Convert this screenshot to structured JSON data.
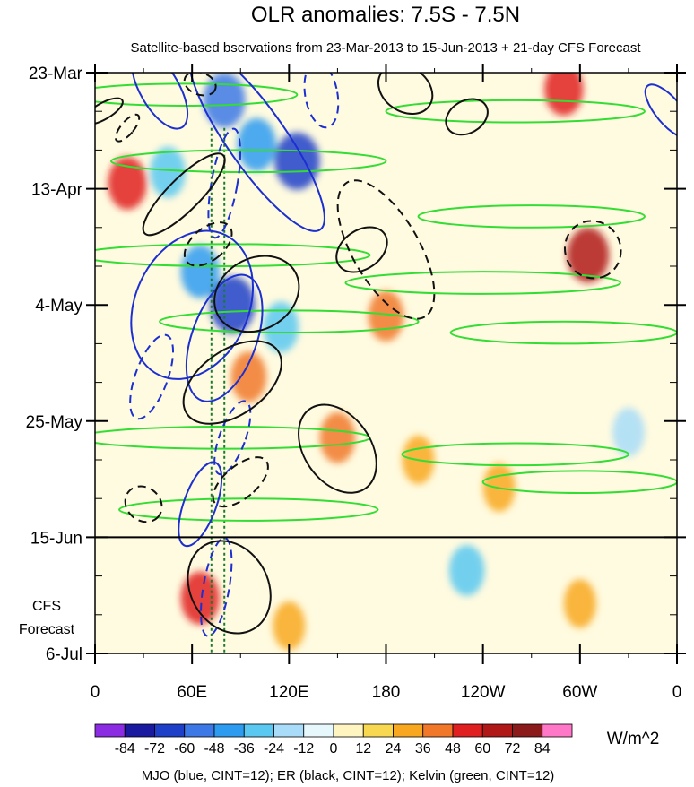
{
  "chart_data": {
    "type": "heatmap",
    "title": "OLR anomalies: 7.5S - 7.5N",
    "subtitle": "Satellite-based bservations from 23-Mar-2013 to 15-Jun-2013 + 21-day CFS Forecast",
    "x_ticks": [
      {
        "lon": 0,
        "label": "0"
      },
      {
        "lon": 60,
        "label": "60E"
      },
      {
        "lon": 120,
        "label": "120E"
      },
      {
        "lon": 180,
        "label": "180"
      },
      {
        "lon": 240,
        "label": "120W"
      },
      {
        "lon": 300,
        "label": "60W"
      },
      {
        "lon": 360,
        "label": "0"
      }
    ],
    "xlim": [
      0,
      360
    ],
    "y_ticks": [
      {
        "day": 0,
        "label": "23-Mar"
      },
      {
        "day": 21,
        "label": "13-Apr"
      },
      {
        "day": 42,
        "label": "4-May"
      },
      {
        "day": 63,
        "label": "25-May"
      },
      {
        "day": 84,
        "label": "15-Jun"
      },
      {
        "day": 105,
        "label": "6-Jul"
      }
    ],
    "ylim_days": [
      0,
      105
    ],
    "forecast_start_day": 84,
    "forecast_label": [
      "CFS",
      "Forecast"
    ],
    "colorbar": {
      "levels": [
        -84,
        -72,
        -60,
        -48,
        -36,
        -24,
        -12,
        0,
        12,
        24,
        36,
        48,
        60,
        72,
        84
      ],
      "level_labels": [
        "-84",
        "-72",
        "-60",
        "-48",
        "-36",
        "-24",
        "-12",
        "0",
        "12",
        "24",
        "36",
        "48",
        "60",
        "72",
        "84"
      ],
      "colors": [
        "#8b2be2",
        "#1a1aa0",
        "#1e3fc8",
        "#3c78e6",
        "#2d9bf0",
        "#5ac8f0",
        "#a8dcf8",
        "#e6f8fc",
        "#fff5c0",
        "#f8d850",
        "#f8a820",
        "#f07828",
        "#e02020",
        "#b01818",
        "#8b1a1a",
        "#ff78c8"
      ],
      "units": "W/m^2"
    },
    "footnote": "MJO (blue, CINT=12); ER (black, CINT=12); Kelvin (green, CINT=12)",
    "reference_lines_lon": [
      72,
      80
    ],
    "anomaly_features": [
      {
        "lon": 80,
        "day": 5,
        "value": -60
      },
      {
        "lon": 100,
        "day": 13,
        "value": -48
      },
      {
        "lon": 125,
        "day": 16,
        "value": -72
      },
      {
        "lon": 45,
        "day": 18,
        "value": -36
      },
      {
        "lon": 65,
        "day": 36,
        "value": -48
      },
      {
        "lon": 85,
        "day": 42,
        "value": -72
      },
      {
        "lon": 115,
        "day": 46,
        "value": -36
      },
      {
        "lon": 95,
        "day": 55,
        "value": 36
      },
      {
        "lon": 180,
        "day": 44,
        "value": 36
      },
      {
        "lon": 150,
        "day": 66,
        "value": 36
      },
      {
        "lon": 65,
        "day": 95,
        "value": 48
      },
      {
        "lon": 305,
        "day": 33,
        "value": 60
      },
      {
        "lon": 290,
        "day": 3,
        "value": 48
      },
      {
        "lon": 20,
        "day": 20,
        "value": 48
      },
      {
        "lon": 230,
        "day": 90,
        "value": -36
      },
      {
        "lon": 200,
        "day": 70,
        "value": 24
      },
      {
        "lon": 250,
        "day": 75,
        "value": 24
      },
      {
        "lon": 330,
        "day": 65,
        "value": -24
      },
      {
        "lon": 120,
        "day": 100,
        "value": 24
      },
      {
        "lon": 300,
        "day": 96,
        "value": 24
      }
    ],
    "mjo_contours": [
      {
        "lon": 40,
        "day": 3,
        "dlon": 12,
        "dday": 8,
        "angle": -30,
        "dash": false
      },
      {
        "lon": 100,
        "day": 12,
        "dlon": 18,
        "dday": 20,
        "angle": -35,
        "dash": false
      },
      {
        "lon": 60,
        "day": 42,
        "dlon": 35,
        "dday": 14,
        "angle": 25,
        "dash": false
      },
      {
        "lon": 80,
        "day": 48,
        "dlon": 20,
        "dday": 12,
        "angle": 20,
        "dash": false
      },
      {
        "lon": 65,
        "day": 78,
        "dlon": 10,
        "dday": 8,
        "angle": 20,
        "dash": false
      },
      {
        "lon": 355,
        "day": 7,
        "dlon": 8,
        "dday": 6,
        "angle": -40,
        "dash": false
      },
      {
        "lon": 80,
        "day": 20,
        "dlon": 8,
        "dday": 10,
        "angle": 10,
        "dash": true
      },
      {
        "lon": 35,
        "day": 55,
        "dlon": 10,
        "dday": 8,
        "angle": 20,
        "dash": true
      },
      {
        "lon": 85,
        "day": 66,
        "dlon": 8,
        "dday": 7,
        "angle": 20,
        "dash": true
      },
      {
        "lon": 75,
        "day": 93,
        "dlon": 8,
        "dday": 9,
        "angle": 10,
        "dash": true
      },
      {
        "lon": 140,
        "day": 4,
        "dlon": 10,
        "dday": 6,
        "angle": -10,
        "dash": true
      }
    ],
    "er_contours": [
      {
        "lon": 55,
        "day": 22,
        "dlon": 10,
        "dday": 10,
        "angle": 45,
        "dash": false
      },
      {
        "lon": 85,
        "day": 56,
        "dlon": 20,
        "dday": 10,
        "angle": 55,
        "dash": false
      },
      {
        "lon": 100,
        "day": 40,
        "dlon": 22,
        "dday": 8,
        "angle": 60,
        "dash": false
      },
      {
        "lon": 165,
        "day": 32,
        "dlon": 12,
        "dday": 5,
        "angle": 55,
        "dash": false
      },
      {
        "lon": 150,
        "day": 68,
        "dlon": 30,
        "dday": 6,
        "angle": 55,
        "dash": false
      },
      {
        "lon": 83,
        "day": 93,
        "dlon": 30,
        "dday": 7,
        "angle": 60,
        "dash": false
      },
      {
        "lon": 230,
        "day": 8,
        "dlon": 10,
        "dday": 4,
        "angle": 60,
        "dash": false
      },
      {
        "lon": 192,
        "day": 3,
        "dlon": 18,
        "dday": 4,
        "angle": 35,
        "dash": false
      },
      {
        "lon": 5,
        "day": 7,
        "dlon": 5,
        "dday": 4,
        "angle": 60,
        "dash": false
      },
      {
        "lon": 180,
        "day": 32,
        "dlon": 48,
        "dday": 6,
        "angle": 60,
        "dash": true
      },
      {
        "lon": 90,
        "day": 74,
        "dlon": 10,
        "dday": 6,
        "angle": 50,
        "dash": true
      },
      {
        "lon": 30,
        "day": 78,
        "dlon": 12,
        "dday": 3,
        "angle": 40,
        "dash": true
      },
      {
        "lon": 308,
        "day": 32,
        "dlon": 18,
        "dday": 5,
        "angle": 60,
        "dash": true
      },
      {
        "lon": 70,
        "day": 31,
        "dlon": 10,
        "dday": 5,
        "angle": 50,
        "dash": true
      },
      {
        "lon": 20,
        "day": 10,
        "dlon": 4,
        "dday": 3,
        "angle": 40,
        "dash": true
      },
      {
        "lon": 65,
        "day": 2,
        "dlon": 10,
        "dday": 2,
        "angle": 20,
        "dash": true
      }
    ],
    "kelvin_contours": [
      {
        "lon": 55,
        "day": 4,
        "dlon": 70,
        "dday": 2,
        "angle": 0
      },
      {
        "lon": 260,
        "day": 7,
        "dlon": 80,
        "dday": 2,
        "angle": 0
      },
      {
        "lon": 95,
        "day": 16,
        "dlon": 85,
        "dday": 2,
        "angle": 0
      },
      {
        "lon": 270,
        "day": 26,
        "dlon": 70,
        "dday": 2,
        "angle": 0
      },
      {
        "lon": 80,
        "day": 33,
        "dlon": 90,
        "dday": 2,
        "angle": 0
      },
      {
        "lon": 240,
        "day": 38,
        "dlon": 85,
        "dday": 2,
        "angle": 0
      },
      {
        "lon": 120,
        "day": 45,
        "dlon": 80,
        "dday": 2,
        "angle": 0
      },
      {
        "lon": 290,
        "day": 47,
        "dlon": 70,
        "dday": 2,
        "angle": 0
      },
      {
        "lon": 80,
        "day": 66,
        "dlon": 90,
        "dday": 2,
        "angle": 0
      },
      {
        "lon": 260,
        "day": 69,
        "dlon": 70,
        "dday": 2,
        "angle": 0
      },
      {
        "lon": 95,
        "day": 79,
        "dlon": 80,
        "dday": 2,
        "angle": 0
      },
      {
        "lon": 300,
        "day": 74,
        "dlon": 60,
        "dday": 2,
        "angle": 0
      }
    ]
  }
}
